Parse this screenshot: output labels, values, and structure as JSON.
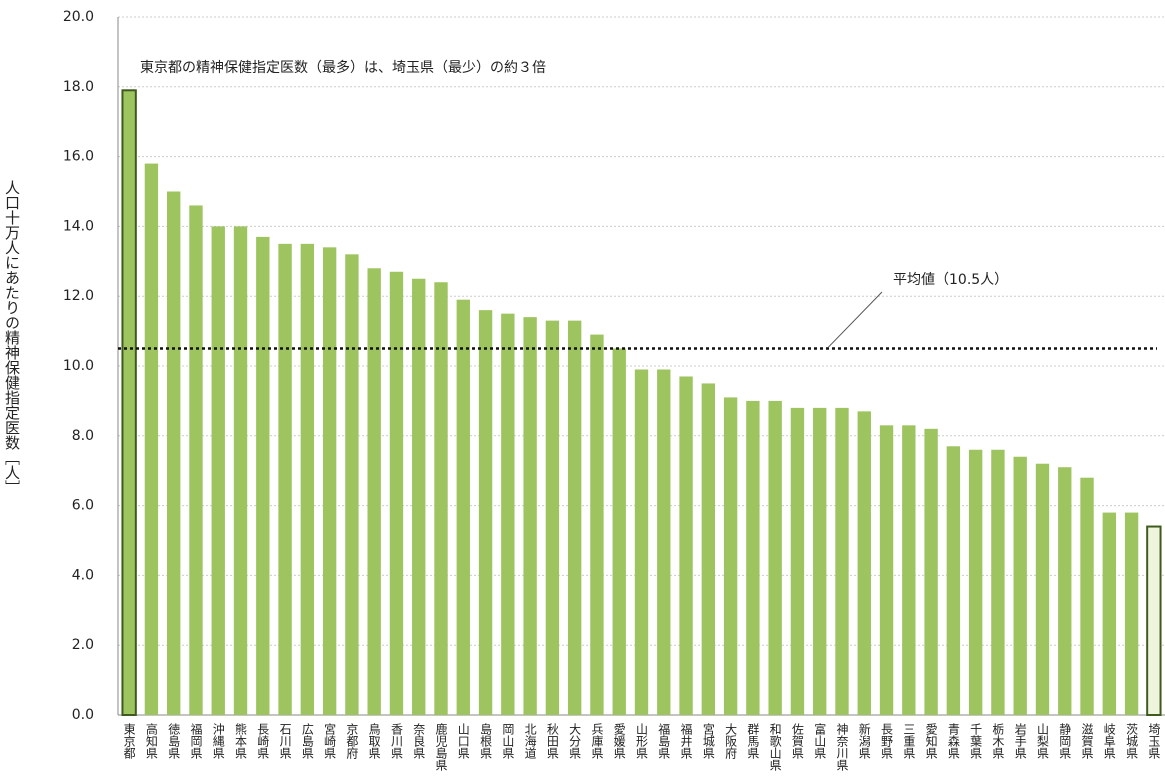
{
  "chart_data": {
    "type": "bar",
    "ylabel": "人口十万人にあたりの精神保健指定医数［人］",
    "annotation": "東京都の精神保健指定医数（最多）は、埼玉県（最少）の約３倍",
    "average_label": "平均値（10.5人）",
    "average": 10.5,
    "categories": [
      "東京都",
      "高知県",
      "徳島県",
      "福岡県",
      "沖縄県",
      "熊本県",
      "長崎県",
      "石川県",
      "広島県",
      "宮崎県",
      "京都府",
      "鳥取県",
      "香川県",
      "奈良県",
      "鹿児島県",
      "山口県",
      "島根県",
      "岡山県",
      "北海道",
      "秋田県",
      "大分県",
      "兵庫県",
      "愛媛県",
      "山形県",
      "福島県",
      "福井県",
      "宮城県",
      "大阪府",
      "群馬県",
      "和歌山県",
      "佐賀県",
      "富山県",
      "神奈川県",
      "新潟県",
      "長野県",
      "三重県",
      "愛知県",
      "青森県",
      "千葉県",
      "栃木県",
      "岩手県",
      "山梨県",
      "静岡県",
      "滋賀県",
      "岐阜県",
      "茨城県",
      "埼玉県"
    ],
    "values": [
      17.9,
      15.8,
      15.0,
      14.6,
      14.0,
      14.0,
      13.7,
      13.5,
      13.5,
      13.4,
      13.2,
      12.8,
      12.7,
      12.5,
      12.4,
      11.9,
      11.6,
      11.5,
      11.4,
      11.3,
      11.3,
      10.9,
      10.5,
      9.9,
      9.9,
      9.7,
      9.5,
      9.1,
      9.0,
      9.0,
      8.8,
      8.8,
      8.8,
      8.7,
      8.3,
      8.3,
      8.2,
      7.7,
      7.6,
      7.6,
      7.4,
      7.2,
      7.1,
      6.8,
      5.8,
      5.8,
      5.4
    ],
    "color": "#9dc45f",
    "colors": {
      "0": "#9dc45f",
      "46": "#eef5dc"
    },
    "edgecolor": "#3f5a1e",
    "ylim": [
      0,
      20
    ],
    "yticks": [
      {
        "value": 0,
        "label": "0.0"
      },
      {
        "value": 2,
        "label": "2.0"
      },
      {
        "value": 4,
        "label": "4.0"
      },
      {
        "value": 6,
        "label": "6.0"
      },
      {
        "value": 8,
        "label": "8.0"
      },
      {
        "value": 10,
        "label": "10.0"
      },
      {
        "value": 12,
        "label": "12.0"
      },
      {
        "value": 14,
        "label": "14.0"
      },
      {
        "value": 16,
        "label": "16.0"
      },
      {
        "value": 18,
        "label": "18.0"
      },
      {
        "value": 20,
        "label": "20.0"
      }
    ],
    "grid": true
  }
}
